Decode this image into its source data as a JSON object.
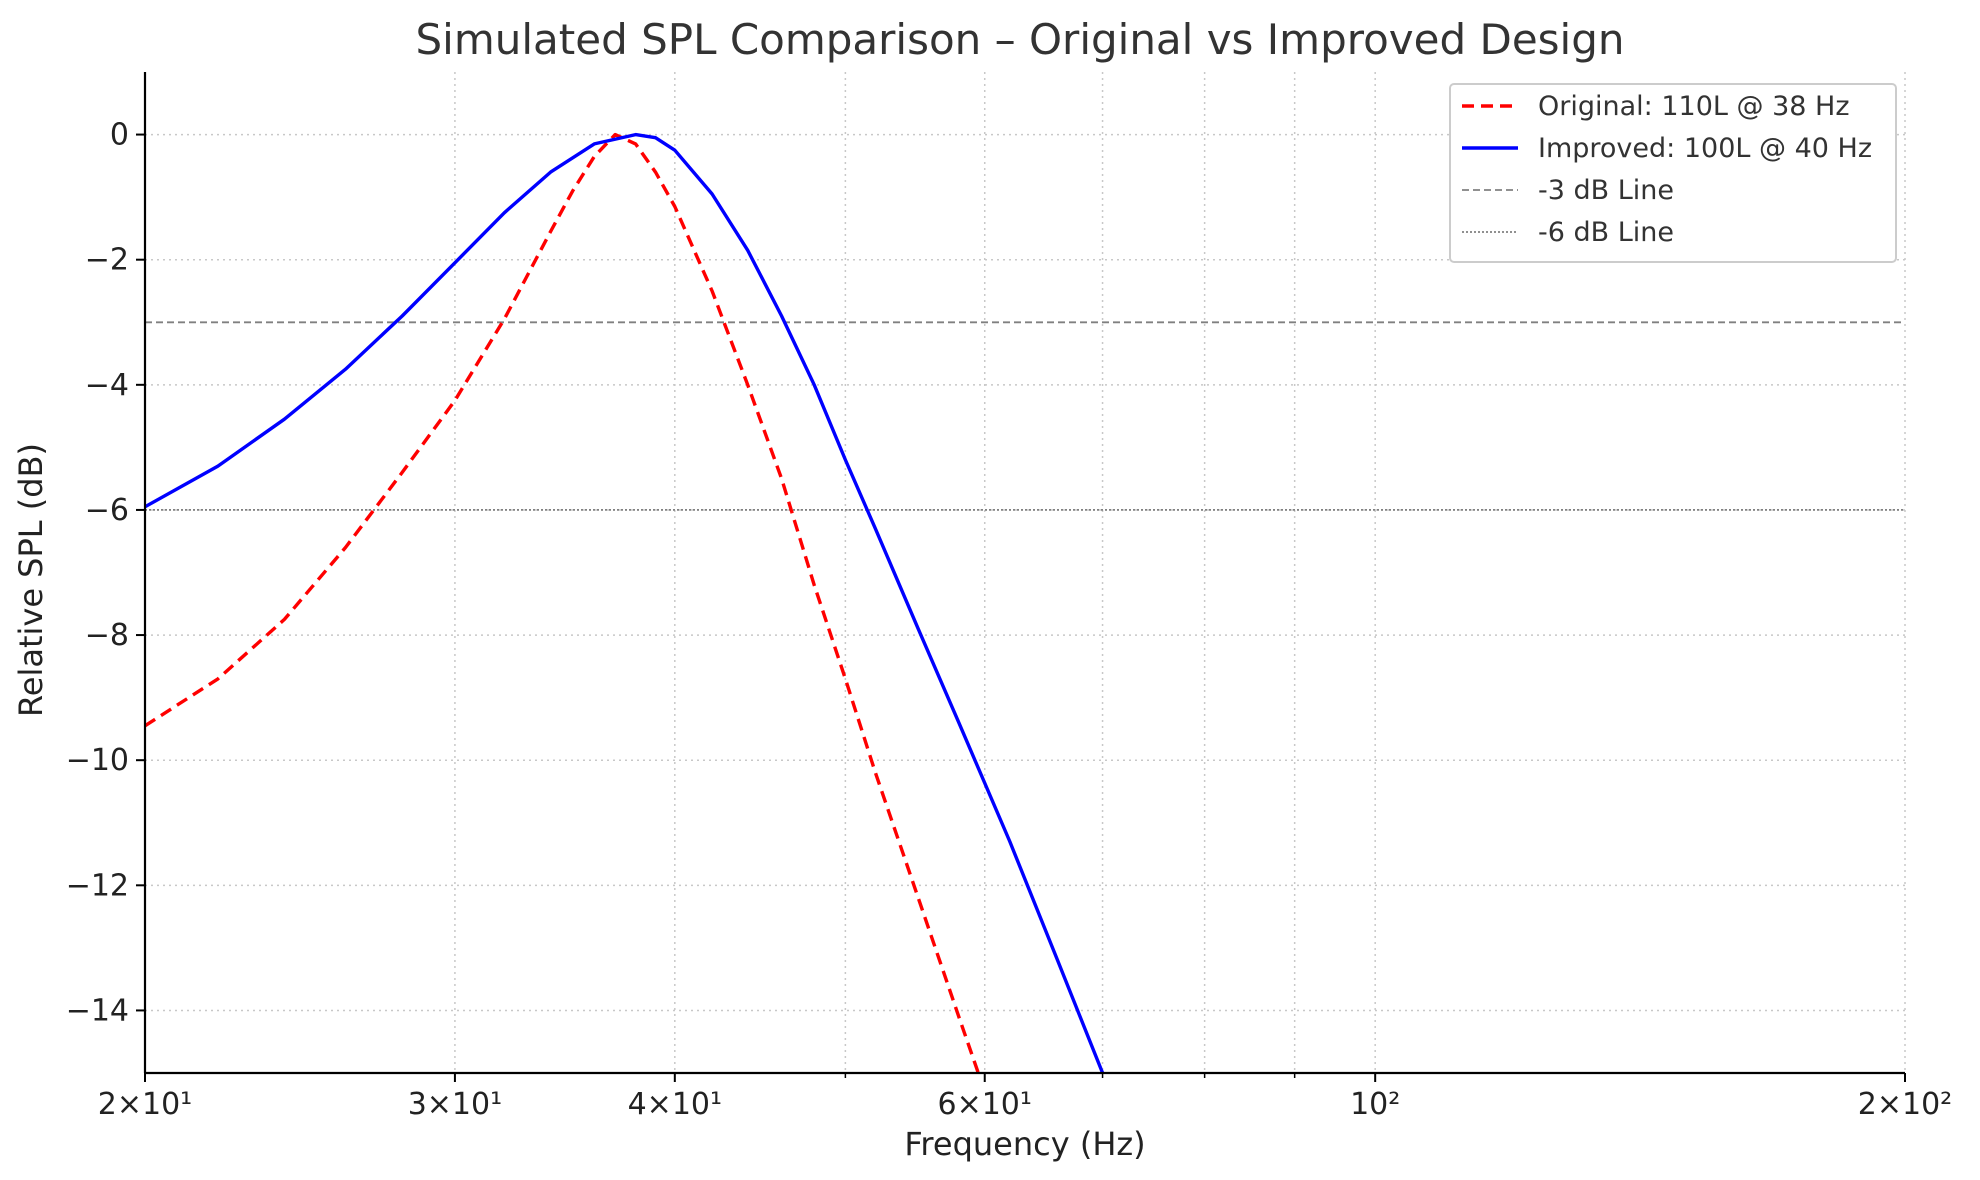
{
  "chart_data": {
    "type": "line",
    "title": "Simulated SPL Comparison – Original vs Improved Design",
    "xlabel": "Frequency (Hz)",
    "ylabel": "Relative SPL (dB)",
    "xscale": "log",
    "xlim": [
      20,
      200
    ],
    "ylim": [
      -15,
      1
    ],
    "grid": true,
    "legend_position": "top-right",
    "x_ticks": [
      {
        "value": 20,
        "label": "2×10¹"
      },
      {
        "value": 30,
        "label": "3×10¹"
      },
      {
        "value": 40,
        "label": "4×10¹"
      },
      {
        "value": 60,
        "label": "6×10¹"
      },
      {
        "value": 100,
        "label": "10²"
      },
      {
        "value": 200,
        "label": "2×10²"
      }
    ],
    "x_minor_ticks": [
      50,
      70,
      80,
      90
    ],
    "y_ticks": [
      {
        "value": 0,
        "label": "0"
      },
      {
        "value": -2,
        "label": "−2"
      },
      {
        "value": -4,
        "label": "−4"
      },
      {
        "value": -6,
        "label": "−6"
      },
      {
        "value": -8,
        "label": "−8"
      },
      {
        "value": -10,
        "label": "−10"
      },
      {
        "value": -12,
        "label": "−12"
      },
      {
        "value": -14,
        "label": "−14"
      }
    ],
    "series": [
      {
        "name": "Original: 110L @ 38 Hz",
        "color": "#ff0000",
        "style": "dashed",
        "x": [
          20,
          22,
          24,
          26,
          28,
          30,
          32,
          34,
          35,
          36,
          37,
          38,
          39,
          40,
          42,
          44,
          46,
          48,
          50,
          52,
          55,
          58,
          59.5
        ],
        "y": [
          -9.45,
          -8.7,
          -7.75,
          -6.6,
          -5.4,
          -4.25,
          -2.95,
          -1.55,
          -0.9,
          -0.35,
          0.0,
          -0.15,
          -0.6,
          -1.15,
          -2.5,
          -4.0,
          -5.5,
          -7.2,
          -8.7,
          -10.2,
          -12.2,
          -14.1,
          -15.0
        ]
      },
      {
        "name": "Improved: 100L @ 40 Hz",
        "color": "#0000ff",
        "style": "solid",
        "x": [
          20,
          22,
          24,
          26,
          28,
          30,
          32,
          34,
          36,
          38,
          39,
          40,
          42,
          44,
          46,
          48,
          50,
          52,
          55,
          58,
          62,
          66,
          70
        ],
        "y": [
          -5.95,
          -5.3,
          -4.55,
          -3.75,
          -2.9,
          -2.05,
          -1.25,
          -0.6,
          -0.15,
          0.0,
          -0.05,
          -0.25,
          -0.95,
          -1.85,
          -2.9,
          -4.0,
          -5.2,
          -6.3,
          -7.9,
          -9.4,
          -11.3,
          -13.2,
          -15.0
        ]
      },
      {
        "name": "-3 dB Line",
        "color": "#808080",
        "style": "dashed-thin",
        "x": [
          20,
          200
        ],
        "y": [
          -3,
          -3
        ]
      },
      {
        "name": "-6 dB Line",
        "color": "#808080",
        "style": "dotted",
        "x": [
          20,
          200
        ],
        "y": [
          -6,
          -6
        ]
      }
    ]
  }
}
